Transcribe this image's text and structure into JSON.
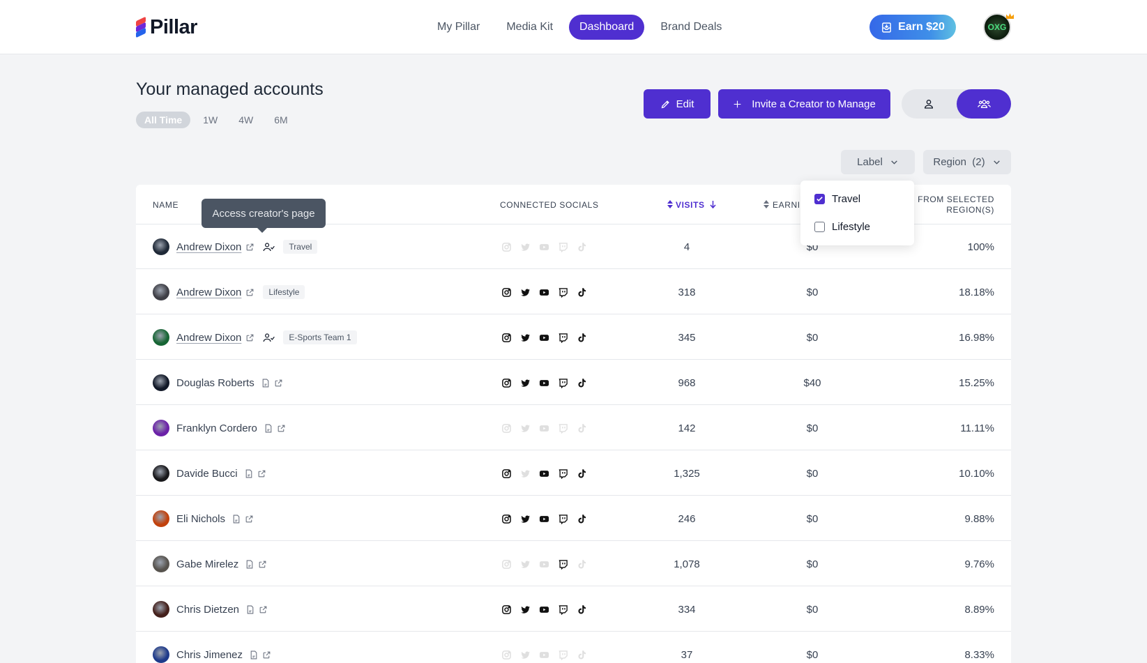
{
  "header": {
    "logo_text": "Pillar",
    "nav": [
      "My Pillar",
      "Media Kit",
      "Dashboard",
      "Brand Deals"
    ],
    "active_nav": "Dashboard",
    "earn_label": "Earn $20",
    "profile_avatar_text": "OXG"
  },
  "page": {
    "title": "Your managed accounts",
    "time_filters": [
      "All Time",
      "1W",
      "4W",
      "6M"
    ],
    "active_time_filter": "All Time",
    "edit_label": "Edit",
    "invite_label": "Invite a Creator to Manage"
  },
  "filters": {
    "label": "Label",
    "region": "Region",
    "region_count": "(2)"
  },
  "dropdown": {
    "options": [
      {
        "label": "Travel",
        "checked": true
      },
      {
        "label": "Lifestyle",
        "checked": false
      }
    ]
  },
  "tooltip": "Access creator's page",
  "table": {
    "headers": {
      "name": "NAME",
      "socials": "CONNECTED SOCIALS",
      "visits": "VISITS",
      "earnings": "EARNI",
      "region_line1": "S FROM SELECTED",
      "region_line2": "REGION(S)"
    },
    "rows": [
      {
        "name": "Andrew Dixon",
        "linked": true,
        "managed_icon": true,
        "tag": "Travel",
        "socials": [
          false,
          false,
          false,
          false,
          false
        ],
        "visits": "4",
        "earnings": "$0",
        "pct": "100%",
        "avatar_color": "#1f2937"
      },
      {
        "name": "Andrew Dixon",
        "linked": true,
        "managed_icon": false,
        "tag": "Lifestyle",
        "socials": [
          true,
          true,
          true,
          true,
          true
        ],
        "visits": "318",
        "earnings": "$0",
        "pct": "18.18%",
        "avatar_color": "#3f3f46"
      },
      {
        "name": "Andrew Dixon",
        "linked": true,
        "managed_icon": true,
        "tag": "E-Sports Team 1",
        "socials": [
          true,
          true,
          true,
          true,
          true
        ],
        "visits": "345",
        "earnings": "$0",
        "pct": "16.98%",
        "avatar_color": "#166534"
      },
      {
        "name": "Douglas Roberts",
        "linked": false,
        "managed_icon": false,
        "tag": "",
        "socials": [
          true,
          true,
          true,
          true,
          true
        ],
        "visits": "968",
        "earnings": "$40",
        "pct": "15.25%",
        "avatar_color": "#111827"
      },
      {
        "name": "Franklyn Cordero",
        "linked": false,
        "managed_icon": false,
        "tag": "",
        "socials": [
          false,
          false,
          false,
          false,
          false
        ],
        "visits": "142",
        "earnings": "$0",
        "pct": "11.11%",
        "avatar_color": "#6b21a8"
      },
      {
        "name": "Davide Bucci",
        "linked": false,
        "managed_icon": false,
        "tag": "",
        "socials": [
          true,
          false,
          true,
          true,
          true
        ],
        "visits": "1,325",
        "earnings": "$0",
        "pct": "10.10%",
        "avatar_color": "#18181b"
      },
      {
        "name": "Eli Nichols",
        "linked": false,
        "managed_icon": false,
        "tag": "",
        "socials": [
          true,
          true,
          true,
          true,
          true
        ],
        "visits": "246",
        "earnings": "$0",
        "pct": "9.88%",
        "avatar_color": "#c2410c"
      },
      {
        "name": "Gabe Mirelez",
        "linked": false,
        "managed_icon": false,
        "tag": "",
        "socials": [
          false,
          false,
          false,
          true,
          false
        ],
        "visits": "1,078",
        "earnings": "$0",
        "pct": "9.76%",
        "avatar_color": "#57534e"
      },
      {
        "name": "Chris Dietzen",
        "linked": false,
        "managed_icon": false,
        "tag": "",
        "socials": [
          true,
          true,
          true,
          true,
          true
        ],
        "visits": "334",
        "earnings": "$0",
        "pct": "8.89%",
        "avatar_color": "#44201b"
      },
      {
        "name": "Chris Jimenez",
        "linked": false,
        "managed_icon": false,
        "tag": "",
        "socials": [
          false,
          false,
          false,
          false,
          false
        ],
        "visits": "37",
        "earnings": "$0",
        "pct": "8.33%",
        "avatar_color": "#1e3a8a"
      }
    ]
  },
  "colors": {
    "accent": "#4f2fd0",
    "earn_gradient_start": "#3568e8",
    "earn_gradient_end": "#5fc0e2"
  },
  "icons": {
    "socials": [
      "instagram-icon",
      "twitter-icon",
      "youtube-icon",
      "twitch-icon",
      "tiktok-icon"
    ]
  }
}
